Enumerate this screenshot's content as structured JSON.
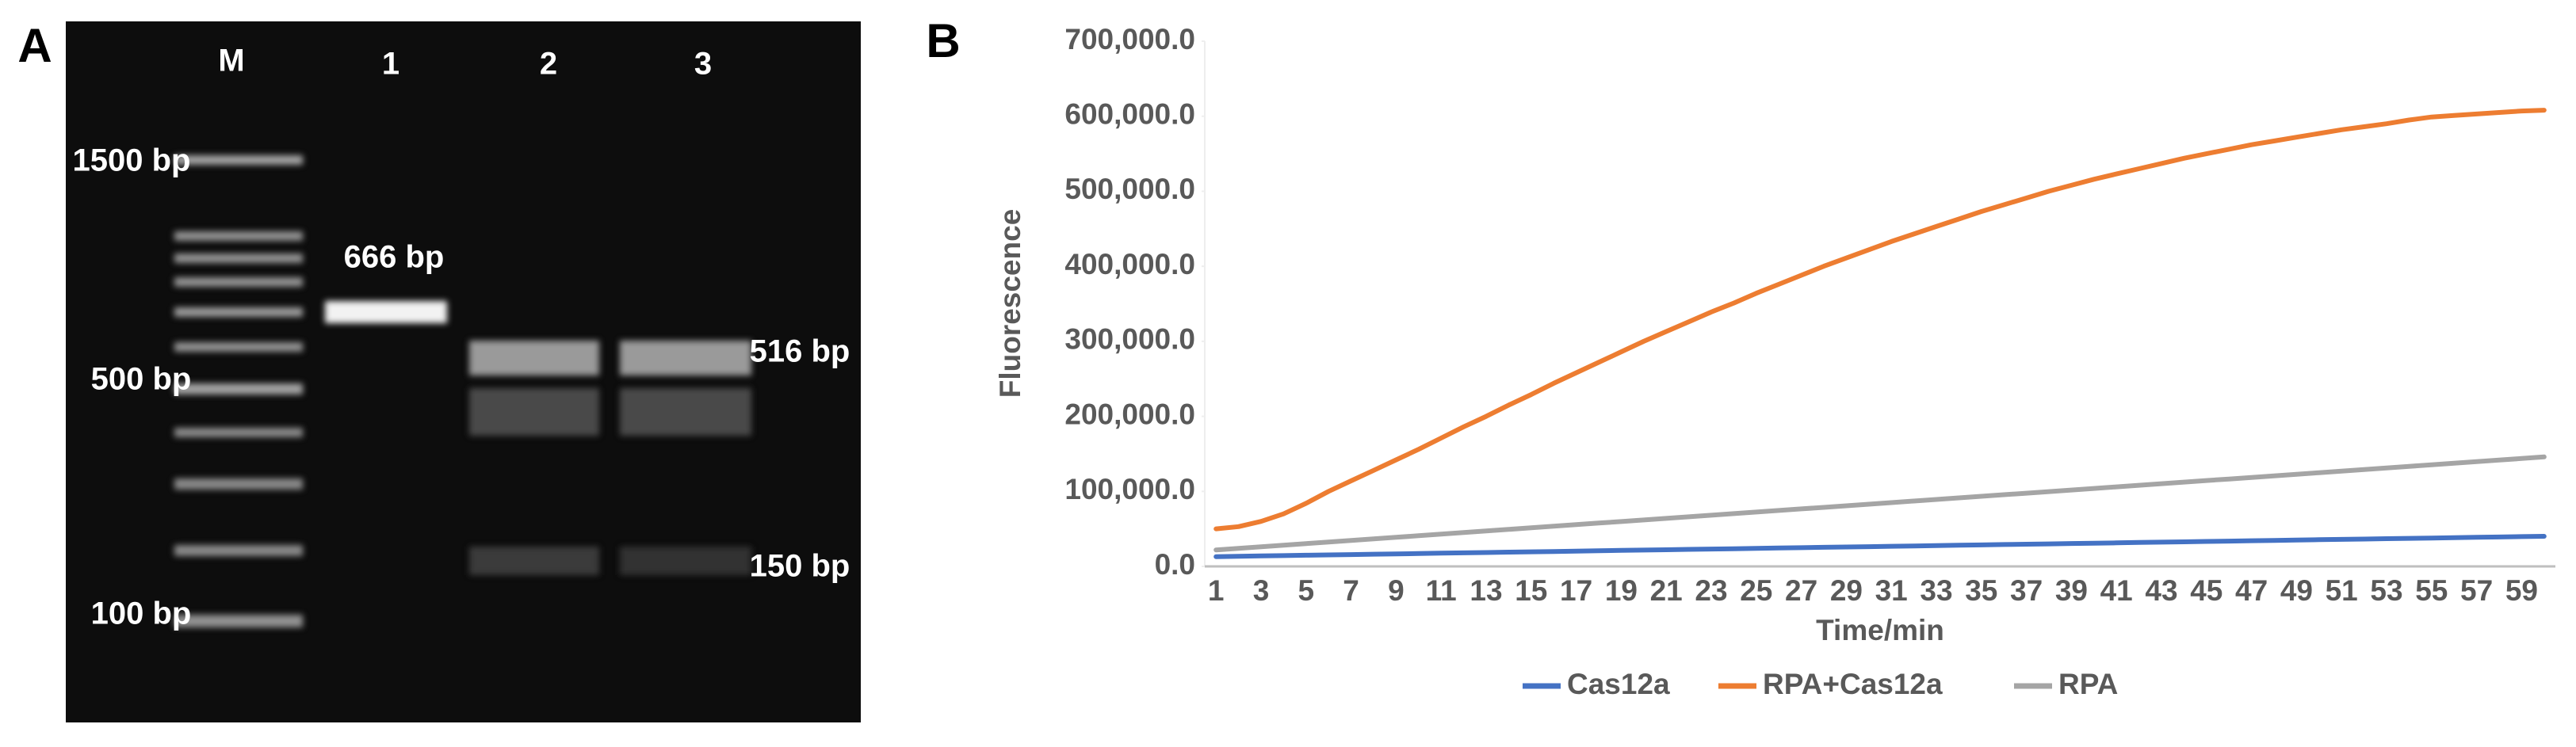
{
  "figure": {
    "panel_a": {
      "label": "A",
      "lanes": [
        "M",
        "1",
        "2",
        "3"
      ],
      "marker_labels": [
        "1500 bp",
        "500 bp",
        "100 bp"
      ],
      "band_labels": [
        "666 bp",
        "516 bp",
        "150 bp"
      ]
    }
  },
  "chart_data": {
    "type": "line",
    "panel_label": "B",
    "y_label": "Fluorescence",
    "x_label": "Time/min",
    "categories": [
      "1",
      null,
      "3",
      null,
      "5",
      null,
      "7",
      null,
      "9",
      null,
      "11",
      null,
      "13",
      null,
      "15",
      null,
      "17",
      null,
      "19",
      null,
      "21",
      null,
      "23",
      null,
      "25",
      null,
      "27",
      null,
      "29",
      null,
      "31",
      null,
      "33",
      null,
      "35",
      null,
      "37",
      null,
      "39",
      null,
      "41",
      null,
      "43",
      null,
      "45",
      null,
      "47",
      null,
      "49",
      null,
      "51",
      null,
      "53",
      null,
      "55",
      null,
      "57",
      null,
      "59",
      null
    ],
    "ylim": [
      0,
      700000
    ],
    "yticks": [
      {
        "value": 0,
        "label": "0.0"
      },
      {
        "value": 100000,
        "label": "100,000.0"
      },
      {
        "value": 200000,
        "label": "200,000.0"
      },
      {
        "value": 300000,
        "label": "300,000.0"
      },
      {
        "value": 400000,
        "label": "400,000.0"
      },
      {
        "value": 500000,
        "label": "500,000.0"
      },
      {
        "value": 600000,
        "label": "600,000.0"
      },
      {
        "value": 700000,
        "label": "700,000.0"
      }
    ],
    "grid": false,
    "legend": "bottom",
    "series": [
      {
        "name": "Cas12a",
        "color": "#4472c4",
        "values": [
          13000,
          13460,
          13920,
          14380,
          14840,
          15300,
          15760,
          16220,
          16680,
          17140,
          17600,
          18060,
          18520,
          18980,
          19440,
          19900,
          20360,
          20820,
          21280,
          21740,
          22200,
          22660,
          23120,
          23580,
          24040,
          24500,
          24960,
          25420,
          25880,
          26340,
          26800,
          27260,
          27720,
          28180,
          28640,
          29100,
          29560,
          30020,
          30480,
          30940,
          31400,
          31860,
          32320,
          32780,
          33240,
          33700,
          34160,
          34620,
          35080,
          35540,
          36000,
          36460,
          36920,
          37380,
          37840,
          38300,
          38760,
          39220,
          39680,
          40140
        ]
      },
      {
        "name": "RPA+Cas12a",
        "color": "#ed7d31",
        "values": [
          50000,
          53000,
          60000,
          70000,
          84000,
          100000,
          114000,
          128000,
          142000,
          156000,
          171000,
          186000,
          200000,
          215000,
          229000,
          244000,
          258000,
          272000,
          286000,
          300000,
          313000,
          326000,
          339000,
          351000,
          364000,
          376000,
          388000,
          400000,
          411000,
          422000,
          433000,
          443000,
          453000,
          463000,
          473000,
          482000,
          491000,
          500000,
          508000,
          516000,
          523000,
          530000,
          537000,
          544000,
          550000,
          556000,
          562000,
          567000,
          572000,
          577000,
          582000,
          586000,
          590000,
          595000,
          599000,
          601000,
          603000,
          605000,
          607000,
          608000
        ]
      },
      {
        "name": "RPA",
        "color": "#a5a5a5",
        "values": [
          22000,
          24100,
          26200,
          28300,
          30400,
          32500,
          34600,
          36700,
          38800,
          40900,
          43000,
          45100,
          47200,
          49300,
          51400,
          53500,
          55600,
          57700,
          59800,
          61900,
          64000,
          66100,
          68200,
          70300,
          72400,
          74500,
          76600,
          78700,
          80800,
          82900,
          85000,
          87100,
          89200,
          91300,
          93400,
          95500,
          97600,
          99700,
          101800,
          103900,
          106000,
          108100,
          110200,
          112300,
          114400,
          116500,
          118600,
          120700,
          122800,
          124900,
          127000,
          129100,
          131200,
          133300,
          135400,
          137500,
          139600,
          141700,
          143800,
          145900
        ]
      }
    ]
  }
}
